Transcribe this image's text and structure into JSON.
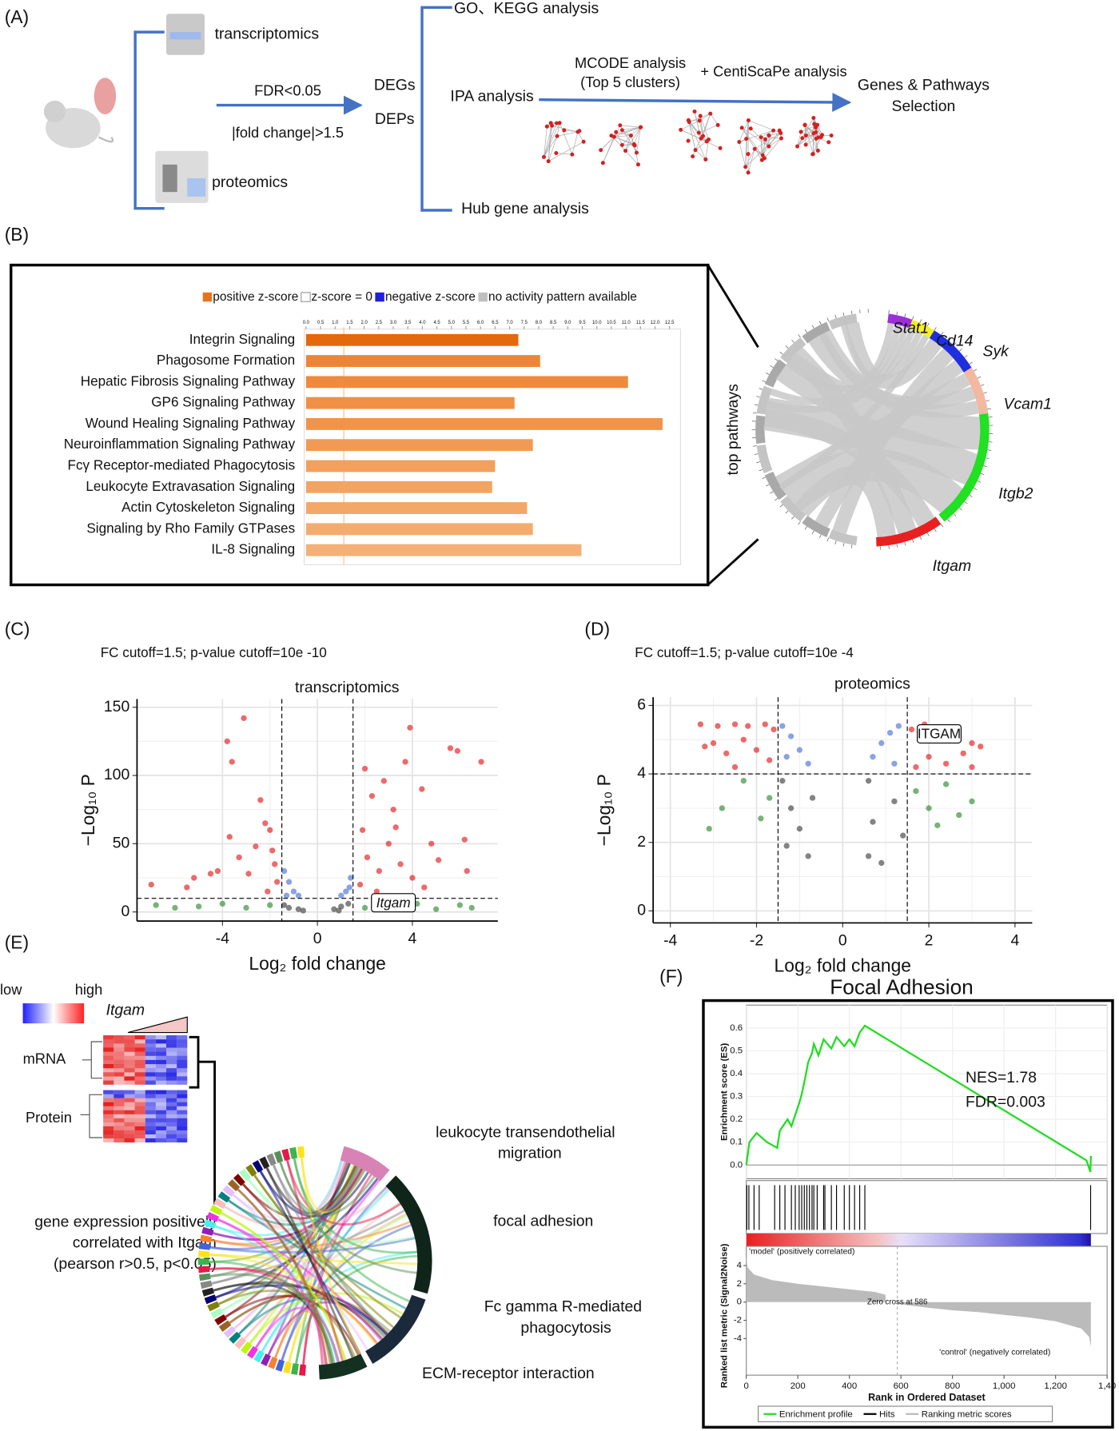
{
  "panel_a": {
    "label": "(A)",
    "transcriptomics": "transcriptomics",
    "proteomics": "proteomics",
    "filter_1": "FDR<0.05",
    "filter_2": "|fold change|>1.5",
    "degs": "DEGs",
    "deps": "DEPs",
    "go_kegg": "GO、KEGG analysis",
    "ipa": "IPA analysis",
    "mcode_1": "MCODE analysis",
    "mcode_2": "(Top 5 clusters)",
    "centiscape": "+ CentiScaPe analysis",
    "selection_1": "Genes & Pathways",
    "selection_2": "Selection",
    "hub": "Hub gene analysis"
  },
  "panel_b": {
    "label": "(B)",
    "chord_label": "top pathways",
    "genes": [
      {
        "name": "Stat1",
        "color": "#9b30d9"
      },
      {
        "name": "Cd14",
        "color": "#f5f020"
      },
      {
        "name": "Syk",
        "color": "#1f2fe0"
      },
      {
        "name": "Vcam1",
        "color": "#f2b8a0"
      },
      {
        "name": "Itgb2",
        "color": "#22e022"
      },
      {
        "name": "Itgam",
        "color": "#e82020"
      }
    ]
  },
  "panel_e": {
    "label": "(E)",
    "low": "low",
    "high": "high",
    "gene": "Itgam",
    "mrna": "mRNA",
    "protein": "Protein",
    "desc_1": "gene expression positively",
    "desc_2": "correlated with Itgam",
    "desc_3": "(pearson r>0.5, p<0.05)",
    "pathway_1a": "leukocyte transendothelial",
    "pathway_1b": "migration",
    "pathway_2": "focal adhesion",
    "pathway_3a": "Fc gamma R-mediated",
    "pathway_3b": "phagocytosis",
    "pathway_4": "ECM-receptor interaction"
  },
  "chart_data": [
    {
      "type": "bar",
      "orientation": "horizontal",
      "legend": [
        {
          "name": "positive z-score",
          "color": "#e8731e"
        },
        {
          "name": "z-score = 0",
          "color": "#ffffff"
        },
        {
          "name": "negative z-score",
          "color": "#1f1fdd"
        },
        {
          "name": "no activity pattern available",
          "color": "#bfbfbf"
        }
      ],
      "categories": [
        "Integrin Signaling",
        "Phagosome Formation",
        "Hepatic Fibrosis Signaling Pathway",
        "GP6 Signaling Pathway",
        "Wound Healing Signaling Pathway",
        "Neuroinflammation Signaling Pathway",
        "Fcγ Receptor-mediated Phagocytosis",
        "Leukocyte Extravasation Signaling",
        "Actin Cytoskeleton Signaling",
        "Signaling by Rho Family GTPases",
        "IL-8 Signaling"
      ],
      "values": [
        7.3,
        8.05,
        11.07,
        7.17,
        12.26,
        7.8,
        6.5,
        6.4,
        7.6,
        7.8,
        9.47
      ],
      "colors": [
        "#e4680c",
        "#ee8536",
        "#ef8a3e",
        "#f09046",
        "#f0944c",
        "#f19a54",
        "#f2a05c",
        "#f2a462",
        "#f3a868",
        "#f3ac6e",
        "#f4b077"
      ],
      "threshold": 1.3,
      "xlim": [
        0,
        12.5
      ],
      "xticks": [
        {
          "value": 0,
          "label": "0.0"
        },
        0.5,
        {
          "value": 1,
          "label": "1.0"
        },
        1.5,
        {
          "value": 2,
          "label": "2.0"
        },
        2.5,
        {
          "value": 3,
          "label": "3.0"
        },
        3.5,
        {
          "value": 4,
          "label": "4.0"
        },
        4.5,
        {
          "value": 5,
          "label": "5.0"
        },
        5.5,
        {
          "value": 6,
          "label": "6.0"
        },
        6.5,
        {
          "value": 7,
          "label": "7.0"
        },
        7.5,
        {
          "value": 8,
          "label": "8.0"
        },
        8.5,
        {
          "value": 9,
          "label": "9.0"
        },
        9.5,
        {
          "value": 10,
          "label": "10.0"
        },
        10.5,
        {
          "value": 11,
          "label": "11.0"
        },
        11.5,
        {
          "value": 12,
          "label": "12.0"
        },
        12.5
      ]
    },
    {
      "type": "scatter",
      "panel": "(C)",
      "subtitle": "FC cutoff=1.5; p-value cutoff=10e -10",
      "title": "transcriptomics",
      "x_label": "Log₂ fold change",
      "y_label": "−Log₁₀ P",
      "xlim": [
        -7.6,
        7.6
      ],
      "ylim": [
        -6.7,
        156
      ],
      "xticks": [
        -4,
        0,
        4
      ],
      "yticks": [
        0,
        50,
        100,
        150
      ],
      "x_cutoffs": [
        -1.5,
        1.5
      ],
      "y_cutoff": 10,
      "grid": true,
      "annotation": {
        "text": "Itgam",
        "x": 3.2,
        "y": 6.7
      },
      "series": [
        {
          "color": "#e41a1c",
          "x": [
            -3.8,
            -3.6,
            -3.1,
            -2.4,
            -2.2,
            -2.0,
            -2.6,
            -3.3,
            -4.2,
            -5.2,
            -5.5,
            -1.8,
            -2.9,
            -1.7,
            -3.7,
            -4.5,
            -2.1,
            -1.9,
            1.9,
            2.3,
            2.8,
            3.2,
            3.7,
            3.9,
            4.4,
            4.8,
            5.1,
            5.6,
            5.9,
            6.2,
            6.9,
            2.1,
            2.6,
            3.0,
            3.5,
            4.0,
            1.8,
            2.5,
            4.5,
            3.3,
            2.0,
            6.3,
            -7.0
          ],
          "y": [
            125,
            110,
            142,
            82,
            65,
            60,
            48,
            40,
            30,
            25,
            18,
            35,
            28,
            22,
            55,
            28,
            15,
            45,
            60,
            85,
            96,
            75,
            110,
            135,
            90,
            50,
            38,
            120,
            118,
            53,
            110,
            40,
            30,
            50,
            35,
            25,
            20,
            15,
            18,
            62,
            105,
            30,
            20
          ]
        },
        {
          "color": "#4a72d8",
          "x": [
            -1.4,
            -1.2,
            -1.0,
            -0.8,
            -1.3,
            1.2,
            1.4,
            1.0,
            1.35
          ],
          "y": [
            30,
            22,
            15,
            12,
            12,
            15,
            25,
            12,
            18
          ]
        },
        {
          "color": "#2e8b2e",
          "x": [
            -6.8,
            -5.0,
            -3.0,
            -2.0,
            2.0,
            3.5,
            5.0,
            6.5,
            -4.0,
            4.2,
            -6.0,
            6.0
          ],
          "y": [
            5,
            4,
            3,
            5,
            3,
            4,
            2,
            3,
            6,
            6,
            3,
            5
          ]
        },
        {
          "color": "#404040",
          "x": [
            -1.2,
            -0.8,
            -1.4,
            0.7,
            1.0,
            1.3,
            -0.6,
            0.9
          ],
          "y": [
            3,
            2,
            5,
            2,
            4,
            6,
            1,
            1
          ]
        }
      ]
    },
    {
      "type": "scatter",
      "panel": "(D)",
      "subtitle": "FC cutoff=1.5; p-value cutoff=10e -4",
      "title": "proteomics",
      "x_label": "Log₂ fold change",
      "y_label": "−Log₁₀ P",
      "xlim": [
        -4.4,
        4.4
      ],
      "ylim": [
        -0.35,
        6.24
      ],
      "xticks": [
        -4,
        -2,
        0,
        2,
        4
      ],
      "yticks": [
        0,
        2,
        4,
        6
      ],
      "x_cutoffs": [
        -1.5,
        1.5
      ],
      "y_cutoff": 4,
      "grid": true,
      "annotation": {
        "text": "ITGAM",
        "x": 2.24,
        "y": 5.17
      },
      "series": [
        {
          "color": "#e41a1c",
          "x": [
            -3.3,
            -2.9,
            -2.5,
            -2.2,
            -1.8,
            -1.6,
            -3.0,
            -2.7,
            -2.3,
            -2.0,
            -1.7,
            -2.5,
            -3.2,
            1.6,
            1.9,
            2.2,
            2.6,
            3.0,
            3.2,
            2.0,
            2.4,
            2.8,
            1.7,
            3.0
          ],
          "y": [
            5.45,
            5.4,
            5.45,
            5.4,
            5.45,
            5.3,
            4.9,
            4.6,
            5.0,
            4.7,
            4.4,
            4.2,
            4.8,
            5.3,
            5.45,
            5.2,
            5.0,
            4.9,
            4.8,
            4.5,
            4.3,
            4.6,
            4.2,
            4.2
          ]
        },
        {
          "color": "#4a72d8",
          "x": [
            -1.4,
            -1.2,
            -1.0,
            -0.8,
            -1.3,
            0.7,
            0.9,
            1.1,
            1.3,
            1.2
          ],
          "y": [
            5.4,
            5.1,
            4.7,
            4.3,
            4.5,
            4.5,
            4.9,
            5.2,
            5.4,
            4.3
          ]
        },
        {
          "color": "#2e8b2e",
          "x": [
            -3.1,
            -2.8,
            -2.3,
            -1.9,
            -1.7,
            1.7,
            2.0,
            2.4,
            2.7,
            3.0,
            2.2
          ],
          "y": [
            2.4,
            3.0,
            3.8,
            2.7,
            3.3,
            3.5,
            3.0,
            3.7,
            2.8,
            3.2,
            2.5
          ]
        },
        {
          "color": "#404040",
          "x": [
            -1.4,
            -1.2,
            -1.0,
            -0.8,
            -1.3,
            -0.7,
            0.6,
            0.7,
            0.9,
            1.2,
            1.4,
            0.6
          ],
          "y": [
            3.8,
            3.0,
            2.4,
            1.6,
            1.9,
            3.3,
            3.8,
            2.6,
            1.4,
            3.2,
            2.2,
            1.6
          ]
        }
      ]
    },
    {
      "type": "enrichment",
      "panel": "(F)",
      "title": "Focal Adhesion",
      "nes": "NES=1.78",
      "fdr": "FDR=0.003",
      "y_label": "Enrichment score (ES)",
      "y2_label": "Ranked list metric (Signal2Noise)",
      "x_label": "Rank in Ordered Dataset",
      "model_label": "'model' (positively correlated)",
      "control_label": "'control' (negatively correlated)",
      "zero_cross": 586,
      "zero_cross_label": "Zero cross at 586",
      "legend": [
        {
          "name": "Enrichment profile",
          "color": "#22dd22"
        },
        {
          "name": "Hits",
          "color": "#000000"
        },
        {
          "name": "Ranking metric scores",
          "color": "#bbbbbb"
        }
      ],
      "xlim": [
        0,
        1400
      ],
      "xticks": [
        0,
        200,
        400,
        600,
        800,
        {
          "value": 1000,
          "label": "1,000"
        },
        {
          "value": 1200,
          "label": "1,200"
        },
        {
          "value": 1400,
          "label": "1,40"
        }
      ],
      "ylim": [
        -0.06,
        0.7
      ],
      "yticks": [
        {
          "value": 0,
          "label": "0.0"
        },
        0.1,
        0.2,
        0.3,
        0.4,
        0.5,
        0.6
      ],
      "y2lim": [
        -8,
        6.1
      ],
      "y2ticks": [
        4,
        2,
        0,
        -2,
        -4
      ],
      "es": {
        "x": [
          0,
          12,
          40,
          80,
          120,
          130,
          160,
          175,
          190,
          205,
          215,
          230,
          240,
          255,
          262,
          280,
          300,
          330,
          350,
          380,
          400,
          420,
          440,
          460,
          1320,
          1335,
          1337
        ],
        "y": [
          0,
          0.1,
          0.14,
          0.1,
          0.075,
          0.15,
          0.2,
          0.17,
          0.22,
          0.27,
          0.31,
          0.39,
          0.45,
          0.49,
          0.53,
          0.48,
          0.55,
          0.51,
          0.56,
          0.52,
          0.55,
          0.52,
          0.58,
          0.61,
          0.02,
          -0.03,
          0.04
        ]
      },
      "hits": [
        2,
        10,
        30,
        50,
        110,
        130,
        150,
        175,
        190,
        205,
        215,
        225,
        235,
        245,
        255,
        262,
        275,
        300,
        305,
        330,
        350,
        380,
        400,
        420,
        440,
        460,
        1336
      ],
      "metric": {
        "x": [
          0,
          5,
          30,
          100,
          200,
          300,
          400,
          500,
          540,
          541,
          586,
          587,
          700,
          800,
          900,
          1000,
          1100,
          1200,
          1300,
          1330,
          1337
        ],
        "y": [
          4.9,
          3.8,
          3.0,
          2.4,
          2.0,
          1.7,
          1.4,
          1.1,
          0.8,
          0,
          0,
          -0.2,
          -0.6,
          -0.9,
          -1.1,
          -1.4,
          -1.7,
          -2.1,
          -2.9,
          -3.8,
          -4.9
        ]
      }
    }
  ]
}
